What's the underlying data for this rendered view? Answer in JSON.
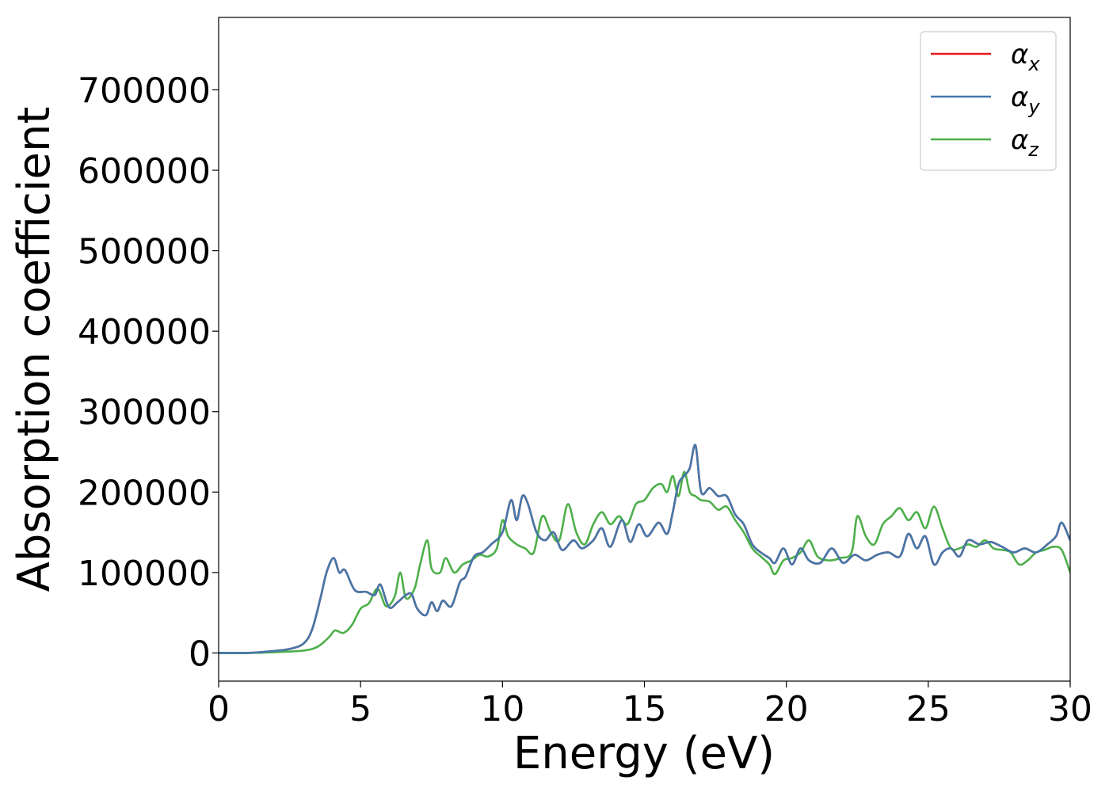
{
  "chart_data": {
    "type": "line",
    "title": "",
    "xlabel": "Energy (eV)",
    "ylabel": "Absorption coefficient",
    "xlim": [
      0,
      30
    ],
    "ylim": [
      -35000,
      790000
    ],
    "xticks": [
      0,
      5,
      10,
      15,
      20,
      25,
      30
    ],
    "yticks": [
      0,
      100000,
      200000,
      300000,
      400000,
      500000,
      600000,
      700000
    ],
    "grid": false,
    "legend_position": "top-right",
    "series": [
      {
        "name": "α_x",
        "legend_symbol": "α",
        "legend_subscript": "x",
        "color": "#e41a1c",
        "x": [
          0,
          1,
          1.8,
          2.5,
          3,
          3.3,
          3.6,
          3.8,
          4.05,
          4.25,
          4.45,
          4.8,
          5.2,
          5.5,
          5.7,
          6,
          6.3,
          6.6,
          6.8,
          7,
          7.3,
          7.5,
          7.7,
          7.9,
          8.2,
          8.5,
          8.7,
          9,
          9.3,
          9.6,
          10,
          10.3,
          10.5,
          10.7,
          10.9,
          11.2,
          11.5,
          11.8,
          12.1,
          12.5,
          12.8,
          13.2,
          13.5,
          13.8,
          14.2,
          14.5,
          14.8,
          15.1,
          15.5,
          15.8,
          16,
          16.2,
          16.4,
          16.6,
          16.8,
          17,
          17.3,
          17.6,
          17.9,
          18.2,
          18.5,
          18.8,
          19.1,
          19.4,
          19.6,
          19.9,
          20.2,
          20.5,
          20.8,
          21.2,
          21.6,
          22,
          22.4,
          22.8,
          23.2,
          23.6,
          24,
          24.3,
          24.6,
          24.9,
          25.2,
          25.5,
          25.8,
          26.1,
          26.4,
          26.8,
          27.2,
          27.6,
          28,
          28.4,
          28.8,
          29.2,
          29.5,
          29.7,
          30
        ],
        "values": [
          0,
          0,
          2000,
          5000,
          12000,
          30000,
          70000,
          100000,
          118000,
          100000,
          103000,
          78000,
          76000,
          72000,
          85000,
          57000,
          63000,
          72000,
          73000,
          55000,
          47000,
          63000,
          52000,
          65000,
          58000,
          88000,
          95000,
          120000,
          125000,
          135000,
          150000,
          190000,
          165000,
          195000,
          185000,
          150000,
          140000,
          150000,
          128000,
          140000,
          130000,
          140000,
          155000,
          132000,
          165000,
          138000,
          160000,
          145000,
          162000,
          148000,
          175000,
          210000,
          220000,
          230000,
          258000,
          200000,
          205000,
          195000,
          195000,
          172000,
          160000,
          135000,
          125000,
          118000,
          112000,
          130000,
          110000,
          130000,
          115000,
          112000,
          130000,
          112000,
          122000,
          115000,
          122000,
          125000,
          120000,
          148000,
          130000,
          145000,
          110000,
          125000,
          130000,
          120000,
          140000,
          135000,
          138000,
          132000,
          125000,
          130000,
          125000,
          135000,
          145000,
          162000,
          140000
        ]
      },
      {
        "name": "α_y",
        "legend_symbol": "α",
        "legend_subscript": "y",
        "color": "#4477aa",
        "x": [
          0,
          1,
          1.8,
          2.5,
          3,
          3.3,
          3.6,
          3.8,
          4.05,
          4.25,
          4.45,
          4.8,
          5.2,
          5.5,
          5.7,
          6,
          6.3,
          6.6,
          6.8,
          7,
          7.3,
          7.5,
          7.7,
          7.9,
          8.2,
          8.5,
          8.7,
          9,
          9.3,
          9.6,
          10,
          10.3,
          10.5,
          10.7,
          10.9,
          11.2,
          11.5,
          11.8,
          12.1,
          12.5,
          12.8,
          13.2,
          13.5,
          13.8,
          14.2,
          14.5,
          14.8,
          15.1,
          15.5,
          15.8,
          16,
          16.2,
          16.4,
          16.6,
          16.8,
          17,
          17.3,
          17.6,
          17.9,
          18.2,
          18.5,
          18.8,
          19.1,
          19.4,
          19.6,
          19.9,
          20.2,
          20.5,
          20.8,
          21.2,
          21.6,
          22,
          22.4,
          22.8,
          23.2,
          23.6,
          24,
          24.3,
          24.6,
          24.9,
          25.2,
          25.5,
          25.8,
          26.1,
          26.4,
          26.8,
          27.2,
          27.6,
          28,
          28.4,
          28.8,
          29.2,
          29.5,
          29.7,
          30
        ],
        "values": [
          0,
          0,
          2000,
          5000,
          12000,
          30000,
          70000,
          100000,
          118000,
          100000,
          103000,
          78000,
          76000,
          72000,
          85000,
          57000,
          63000,
          72000,
          73000,
          55000,
          47000,
          63000,
          52000,
          65000,
          58000,
          88000,
          95000,
          120000,
          125000,
          135000,
          150000,
          190000,
          165000,
          195000,
          185000,
          150000,
          140000,
          150000,
          128000,
          140000,
          130000,
          140000,
          155000,
          132000,
          165000,
          138000,
          160000,
          145000,
          162000,
          148000,
          175000,
          210000,
          220000,
          230000,
          258000,
          200000,
          205000,
          195000,
          195000,
          172000,
          160000,
          135000,
          125000,
          118000,
          112000,
          130000,
          110000,
          130000,
          115000,
          112000,
          130000,
          112000,
          122000,
          115000,
          122000,
          125000,
          120000,
          148000,
          130000,
          145000,
          110000,
          125000,
          130000,
          120000,
          140000,
          135000,
          138000,
          132000,
          125000,
          130000,
          125000,
          135000,
          145000,
          162000,
          140000
        ]
      },
      {
        "name": "α_z",
        "legend_symbol": "α",
        "legend_subscript": "z",
        "color": "#4daf4a",
        "x": [
          0,
          1,
          2,
          3,
          3.5,
          3.9,
          4.1,
          4.4,
          4.7,
          5,
          5.3,
          5.6,
          5.9,
          6.2,
          6.4,
          6.6,
          6.9,
          7.1,
          7.35,
          7.5,
          7.8,
          8,
          8.3,
          8.6,
          8.9,
          9.2,
          9.5,
          9.8,
          10,
          10.2,
          10.5,
          10.8,
          11.1,
          11.4,
          11.7,
          12,
          12.3,
          12.6,
          12.9,
          13.2,
          13.5,
          13.8,
          14.1,
          14.4,
          14.7,
          15,
          15.3,
          15.6,
          15.8,
          16,
          16.2,
          16.4,
          16.6,
          16.8,
          17,
          17.3,
          17.6,
          17.9,
          18.2,
          18.5,
          18.8,
          19.1,
          19.4,
          19.6,
          19.9,
          20.2,
          20.5,
          20.8,
          21.1,
          21.5,
          21.9,
          22.3,
          22.5,
          22.8,
          23.1,
          23.4,
          23.7,
          24,
          24.3,
          24.6,
          24.9,
          25.2,
          25.5,
          25.8,
          26.1,
          26.4,
          26.7,
          27,
          27.3,
          27.6,
          27.9,
          28.2,
          28.5,
          28.8,
          29.1,
          29.4,
          29.7,
          30
        ],
        "values": [
          0,
          0,
          1000,
          3000,
          8000,
          20000,
          28000,
          25000,
          35000,
          55000,
          62000,
          80000,
          58000,
          70000,
          100000,
          68000,
          80000,
          110000,
          140000,
          105000,
          100000,
          118000,
          100000,
          110000,
          115000,
          122000,
          120000,
          130000,
          165000,
          145000,
          135000,
          130000,
          125000,
          170000,
          150000,
          140000,
          185000,
          150000,
          135000,
          160000,
          175000,
          160000,
          170000,
          160000,
          185000,
          190000,
          205000,
          210000,
          200000,
          220000,
          195000,
          225000,
          200000,
          195000,
          190000,
          188000,
          178000,
          182000,
          165000,
          150000,
          130000,
          120000,
          110000,
          98000,
          115000,
          118000,
          125000,
          140000,
          120000,
          115000,
          118000,
          125000,
          170000,
          145000,
          135000,
          160000,
          170000,
          180000,
          165000,
          175000,
          155000,
          182000,
          155000,
          130000,
          130000,
          135000,
          132000,
          140000,
          130000,
          128000,
          125000,
          110000,
          115000,
          125000,
          128000,
          132000,
          128000,
          100000
        ]
      }
    ]
  }
}
